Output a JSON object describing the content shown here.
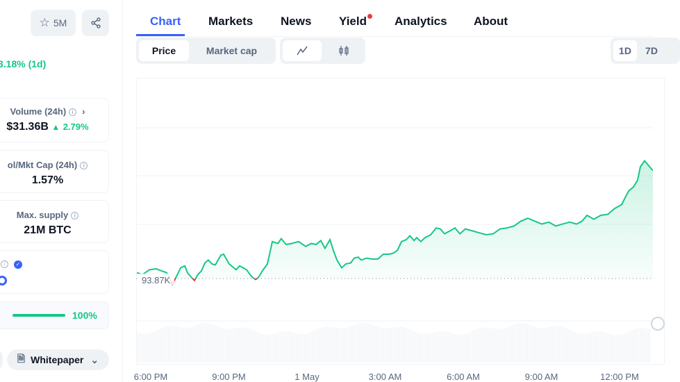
{
  "sidebar": {
    "watchlist_count": "5M",
    "change": "3.18% (1d)",
    "volume": {
      "label": "Volume (24h)",
      "value": "$31.36B",
      "change": "2.79%"
    },
    "vol_mkt_cap": {
      "label": "ol/Mkt Cap (24h)",
      "value": "1.57%"
    },
    "max_supply": {
      "label": "Max. supply",
      "value": "21M BTC"
    },
    "progress": {
      "percent": 100,
      "label": "100%"
    },
    "whitepaper": "Whitepaper"
  },
  "tabs": [
    {
      "label": "Chart"
    },
    {
      "label": "Markets"
    },
    {
      "label": "News"
    },
    {
      "label": "Yield"
    },
    {
      "label": "Analytics"
    },
    {
      "label": "About"
    }
  ],
  "toolbar": {
    "price": "Price",
    "market_cap": "Market cap",
    "range_1d": "1D",
    "range_7d": "7D"
  },
  "colors": {
    "accent": "#3861fb",
    "up": "#16c784",
    "down": "#ea3943"
  },
  "chart_data": {
    "type": "line",
    "baseline_label": "93.87K",
    "baseline": 93.87,
    "x_ticks": [
      "6:00 PM",
      "9:00 PM",
      "1 May",
      "3:00 AM",
      "6:00 AM",
      "9:00 AM",
      "12:00 PM"
    ],
    "x_tick_hours": [
      0,
      3,
      6,
      9,
      12,
      15,
      18
    ],
    "hours": [
      -0.53,
      -0.32,
      -0.05,
      0.21,
      0.4,
      0.61,
      0.83,
      0.93,
      1.15,
      1.31,
      1.41,
      1.57,
      1.68,
      1.81,
      1.95,
      2.08,
      2.21,
      2.35,
      2.48,
      2.69,
      2.8,
      3.01,
      3.28,
      3.41,
      3.55,
      3.68,
      3.87,
      4.03,
      4.13,
      4.29,
      4.48,
      4.67,
      4.88,
      5.01,
      5.2,
      5.41,
      5.68,
      5.95,
      6.16,
      6.35,
      6.53,
      6.69,
      6.88,
      7.01,
      7.15,
      7.33,
      7.49,
      7.68,
      7.81,
      7.97,
      8.08,
      8.29,
      8.51,
      8.72,
      8.93,
      9.15,
      9.31,
      9.47,
      9.63,
      9.81,
      9.95,
      10.11,
      10.21,
      10.37,
      10.53,
      10.75,
      10.96,
      11.12,
      11.28,
      11.49,
      11.68,
      11.87,
      12.08,
      12.35,
      12.61,
      12.88,
      13.15,
      13.41,
      13.68,
      13.95,
      14.21,
      14.48,
      14.75,
      15.01,
      15.28,
      15.55,
      15.81,
      16.08,
      16.35,
      16.56,
      16.75,
      17.01,
      17.28,
      17.55,
      17.81,
      18.08,
      18.21,
      18.35,
      18.53,
      18.69,
      18.8,
      18.96,
      19.12,
      19.28
    ],
    "price_k": [
      93.93,
      93.91,
      93.96,
      93.97,
      93.95,
      93.93,
      93.81,
      93.86,
      93.98,
      94.0,
      93.93,
      93.88,
      93.85,
      93.91,
      93.95,
      94.03,
      94.06,
      94.02,
      94.01,
      94.11,
      94.12,
      94.02,
      93.96,
      94.0,
      93.98,
      93.96,
      93.89,
      93.86,
      93.88,
      93.95,
      94.02,
      94.25,
      94.23,
      94.28,
      94.22,
      94.23,
      94.25,
      94.2,
      94.23,
      94.22,
      94.26,
      94.18,
      94.27,
      94.16,
      94.06,
      93.98,
      94.02,
      94.03,
      94.08,
      94.09,
      94.06,
      94.08,
      94.07,
      94.07,
      94.12,
      94.12,
      94.13,
      94.16,
      94.25,
      94.27,
      94.31,
      94.26,
      94.29,
      94.25,
      94.29,
      94.32,
      94.39,
      94.38,
      94.33,
      94.36,
      94.39,
      94.33,
      94.38,
      94.36,
      94.34,
      94.32,
      94.33,
      94.38,
      94.39,
      94.41,
      94.46,
      94.49,
      94.46,
      94.43,
      94.45,
      94.41,
      94.43,
      94.45,
      94.43,
      94.46,
      94.52,
      94.48,
      94.52,
      94.53,
      94.59,
      94.63,
      94.7,
      94.77,
      94.81,
      94.88,
      95.02,
      95.08,
      95.03,
      94.98
    ]
  }
}
